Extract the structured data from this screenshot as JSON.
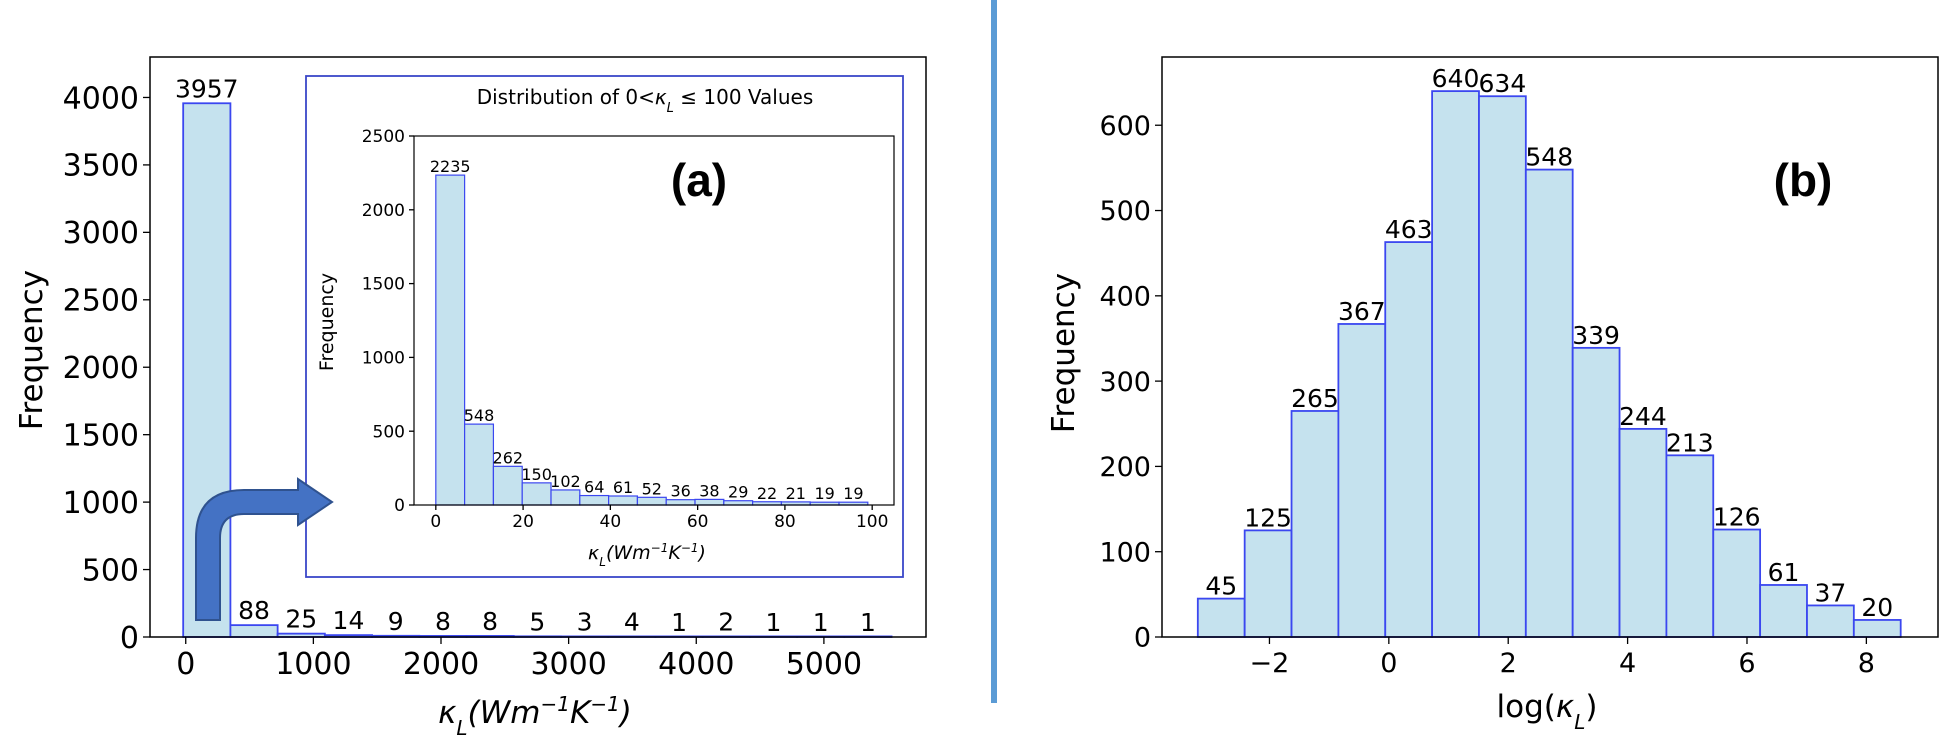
{
  "chart_data": [
    {
      "id": "a_main",
      "type": "bar",
      "xlabel": "κL(Wm−1K−1)",
      "ylabel": "Frequency",
      "xlim": [
        -280,
        5800
      ],
      "ylim": [
        0,
        4300
      ],
      "bin_width": 370,
      "bin_left": -20,
      "values": [
        3957,
        88,
        25,
        14,
        9,
        8,
        8,
        5,
        3,
        4,
        1,
        2,
        1,
        1,
        1
      ],
      "labels": [
        "3957",
        "88",
        "25",
        "14",
        "9",
        "8",
        "8",
        "5",
        "3",
        "4",
        "1",
        "2",
        "1",
        "1",
        "1"
      ],
      "xticks": [
        0,
        1000,
        2000,
        3000,
        4000,
        5000
      ],
      "xticklabels": [
        "0",
        "1000",
        "2000",
        "3000",
        "4000",
        "5000"
      ],
      "yticks": [
        0,
        500,
        1000,
        1500,
        2000,
        2500,
        3000,
        3500,
        4000
      ],
      "yticklabels": [
        "0",
        "500",
        "1000",
        "1500",
        "2000",
        "2500",
        "3000",
        "3500",
        "4000"
      ],
      "panel_label": "(a)"
    },
    {
      "id": "a_inset",
      "type": "bar",
      "title": "Distribution of 0<κL≤100 Values",
      "xlabel": "κL(Wm−1K−1)",
      "ylabel": "Frequency",
      "xlim": [
        -5,
        105
      ],
      "ylim": [
        0,
        2500
      ],
      "bin_width": 6.6,
      "bin_left": 0,
      "values": [
        2235,
        548,
        262,
        150,
        102,
        64,
        61,
        52,
        36,
        38,
        29,
        22,
        21,
        19,
        19
      ],
      "labels": [
        "2235",
        "548",
        "262",
        "150",
        "102",
        "64",
        "61",
        "52",
        "36",
        "38",
        "29",
        "22",
        "21",
        "19",
        "19"
      ],
      "xticks": [
        0,
        20,
        40,
        60,
        80,
        100
      ],
      "xticklabels": [
        "0",
        "20",
        "40",
        "60",
        "80",
        "100"
      ],
      "yticks": [
        0,
        500,
        1000,
        1500,
        2000,
        2500
      ],
      "yticklabels": [
        "0",
        "500",
        "1000",
        "1500",
        "2000",
        "2500"
      ]
    },
    {
      "id": "b",
      "type": "bar",
      "xlabel": "log(κL)",
      "ylabel": "Frequency",
      "xlim": [
        -3.8,
        9.2
      ],
      "ylim": [
        0,
        680
      ],
      "bin_width": 0.785,
      "bin_left": -3.2,
      "values": [
        45,
        125,
        265,
        367,
        463,
        640,
        634,
        548,
        339,
        244,
        213,
        126,
        61,
        37,
        20
      ],
      "labels": [
        "45",
        "125",
        "265",
        "367",
        "463",
        "640",
        "634",
        "548",
        "339",
        "244",
        "213",
        "126",
        "61",
        "37",
        "20"
      ],
      "xticks": [
        -2,
        0,
        2,
        4,
        6,
        8
      ],
      "xticklabels": [
        "−2",
        "0",
        "2",
        "4",
        "6",
        "8"
      ],
      "yticks": [
        0,
        100,
        200,
        300,
        400,
        500,
        600
      ],
      "yticklabels": [
        "0",
        "100",
        "200",
        "300",
        "400",
        "500",
        "600"
      ],
      "panel_label": "(b)"
    }
  ],
  "colors": {
    "bar_fill": "#c5e2ee",
    "bar_edge": "#3b47f0",
    "divider": "#5b9bd5",
    "arrow_fill": "#4472c4",
    "arrow_edge": "#2f528f",
    "inset_border": "#3b47c8"
  },
  "icons": {
    "arrow": "bent-arrow-right-icon"
  }
}
